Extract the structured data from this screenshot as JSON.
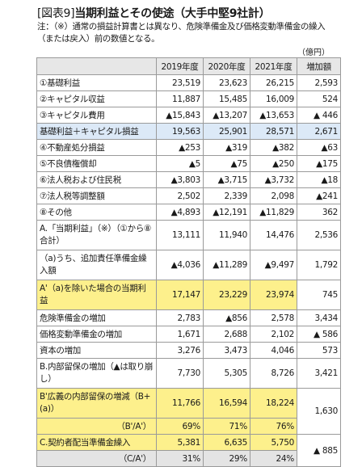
{
  "title": {
    "bracket": "[図表9]",
    "main": "当期利益とその使途（大手中堅9社計）"
  },
  "note": "注：（※）通常の損益計算書とは異なり、危険準備金及び価格変動準備金の繰入（または戻入）前の数値となる。",
  "unit": "（億円）",
  "columns": [
    "",
    "2019年度",
    "2020年度",
    "2021年度",
    "増加額"
  ],
  "rows": [
    {
      "label": "①基礎利益",
      "v": [
        "23,519",
        "23,623",
        "26,215"
      ],
      "inc": "2,593",
      "style": ""
    },
    {
      "label": "②キャピタル収益",
      "v": [
        "11,887",
        "15,485",
        "16,009"
      ],
      "inc": "524",
      "style": ""
    },
    {
      "label": "③キャピタル費用",
      "v": [
        "▲15,843",
        "▲13,207",
        "▲13,653"
      ],
      "inc": "▲ 446",
      "style": ""
    },
    {
      "label": "基礎利益＋キャピタル損益",
      "v": [
        "19,563",
        "25,901",
        "28,571"
      ],
      "inc": "2,671",
      "style": "blue"
    },
    {
      "label": "④不動産処分損益",
      "v": [
        "▲253",
        "▲319",
        "▲382"
      ],
      "inc": "▲63",
      "style": ""
    },
    {
      "label": "⑤不良債権償却",
      "v": [
        "▲5",
        "▲75",
        "▲250"
      ],
      "inc": "▲175",
      "style": ""
    },
    {
      "label": "⑥法人税および住民税",
      "v": [
        "▲3,803",
        "▲3,715",
        "▲3,732"
      ],
      "inc": "▲18",
      "style": ""
    },
    {
      "label": "⑦法人税等調整額",
      "v": [
        "2,502",
        "2,339",
        "2,098"
      ],
      "inc": "▲241",
      "style": ""
    },
    {
      "label": "⑧その他",
      "v": [
        "▲4,893",
        "▲12,191",
        "▲11,829"
      ],
      "inc": "362",
      "style": ""
    },
    {
      "label": "A.「当期利益」（※）（①から⑧合計）",
      "v": [
        "13,111",
        "11,940",
        "14,476"
      ],
      "inc": "2,536",
      "style": "tall"
    },
    {
      "label": "（a)うち、追加責任準備金繰入額",
      "v": [
        "▲4,036",
        "▲11,289",
        "▲9,497"
      ],
      "inc": "1,792",
      "style": "tall"
    },
    {
      "label": "A'（a)を除いた場合の当期利益",
      "v": [
        "17,147",
        "23,229",
        "23,974"
      ],
      "inc": "745",
      "style": "tall yellow"
    },
    {
      "label": "危険準備金の増加",
      "v": [
        "2,783",
        "▲856",
        "2,578"
      ],
      "inc": "3,434",
      "style": ""
    },
    {
      "label": "価格変動準備金の増加",
      "v": [
        "1,671",
        "2,688",
        "2,102"
      ],
      "inc": "▲ 586",
      "style": ""
    },
    {
      "label": "資本の増加",
      "v": [
        "3,276",
        "3,473",
        "4,046"
      ],
      "inc": "573",
      "style": ""
    },
    {
      "label": "B.内部留保の増加（▲は取り崩し）",
      "v": [
        "7,730",
        "5,305",
        "8,726"
      ],
      "inc": "3,421",
      "style": "tall"
    }
  ],
  "b_wide": {
    "label": "B'広義の内部留保の増減（B+(a)）",
    "v": [
      "11,766",
      "16,594",
      "18,224"
    ],
    "inc": "1,630"
  },
  "ratio1": {
    "label": "（B'/A'）",
    "v": [
      "69%",
      "71%",
      "76%"
    ]
  },
  "c_row": {
    "label": "C.契約者配当準備金繰入",
    "v": [
      "5,381",
      "6,635",
      "5,750"
    ],
    "inc": "▲ 885"
  },
  "ratio2": {
    "label": "（C/A'）",
    "v": [
      "31%",
      "29%",
      "24%"
    ]
  }
}
